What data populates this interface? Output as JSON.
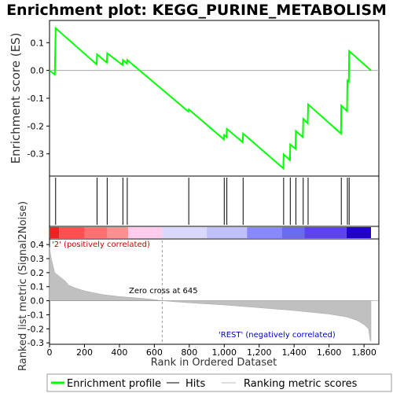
{
  "title": "Enrichment plot: KEGG_PURINE_METABOLISM",
  "top_panel": {
    "ylabel": "Enrichment score (ES)",
    "y_ticks": [
      "0.1",
      "0.0",
      "-0.1",
      "-0.2",
      "-0.3"
    ],
    "line_color": "#00ff00"
  },
  "bottom_panel": {
    "ylabel": "Ranked list metric (Signal2Noise)",
    "y_ticks": [
      "0.4",
      "0.3",
      "0.2",
      "0.1",
      "0.0",
      "-0.1",
      "-0.2",
      "-0.3"
    ],
    "positive_label": "'2' (positively correlated)",
    "negative_label": "'REST' (negatively correlated)",
    "zero_cross_label": "Zero cross at 645",
    "positive_color": "#cc0000",
    "negative_color": "#0000cc"
  },
  "xlabel": "Rank in Ordered Dataset",
  "x_ticks": [
    "0",
    "200",
    "400",
    "600",
    "800",
    "1,000",
    "1,200",
    "1,400",
    "1,600",
    "1,800"
  ],
  "legend": {
    "enrichment_profile": "Enrichment profile",
    "hits": "Hits",
    "ranking_metric": "Ranking metric scores"
  },
  "chart_data": {
    "type": "line",
    "x_range": [
      0,
      1840
    ],
    "es_ylim": [
      -0.38,
      0.18
    ],
    "metric_ylim": [
      -0.31,
      0.44
    ],
    "zero_cross": 645,
    "hits": [
      35,
      272,
      330,
      420,
      445,
      797,
      1000,
      1015,
      1108,
      1340,
      1378,
      1410,
      1452,
      1480,
      1670,
      1705,
      1715
    ],
    "es_profile": {
      "x": [
        0,
        30,
        35,
        270,
        272,
        328,
        330,
        418,
        420,
        443,
        445,
        795,
        797,
        998,
        1000,
        1013,
        1015,
        1106,
        1108,
        1338,
        1340,
        1376,
        1378,
        1408,
        1410,
        1450,
        1452,
        1478,
        1480,
        1668,
        1670,
        1703,
        1705,
        1713,
        1715,
        1840
      ],
      "y": [
        0.0,
        -0.015,
        0.152,
        0.022,
        0.058,
        0.028,
        0.062,
        0.02,
        0.038,
        0.025,
        0.038,
        -0.148,
        -0.14,
        -0.248,
        -0.232,
        -0.24,
        -0.21,
        -0.258,
        -0.227,
        -0.352,
        -0.302,
        -0.323,
        -0.266,
        -0.282,
        -0.218,
        -0.24,
        -0.174,
        -0.19,
        -0.122,
        -0.227,
        -0.126,
        -0.146,
        -0.036,
        -0.04,
        0.07,
        0.0
      ]
    },
    "ranking_metric": {
      "x": [
        0,
        10,
        30,
        60,
        90,
        110,
        150,
        200,
        300,
        400,
        500,
        600,
        645,
        800,
        1000,
        1200,
        1400,
        1600,
        1700,
        1760,
        1800,
        1825,
        1835,
        1840
      ],
      "y": [
        0.38,
        0.3,
        0.2,
        0.17,
        0.14,
        0.11,
        0.09,
        0.07,
        0.045,
        0.03,
        0.02,
        0.008,
        0.0,
        -0.015,
        -0.03,
        -0.05,
        -0.07,
        -0.095,
        -0.115,
        -0.14,
        -0.17,
        -0.2,
        -0.28,
        -0.29
      ]
    }
  }
}
